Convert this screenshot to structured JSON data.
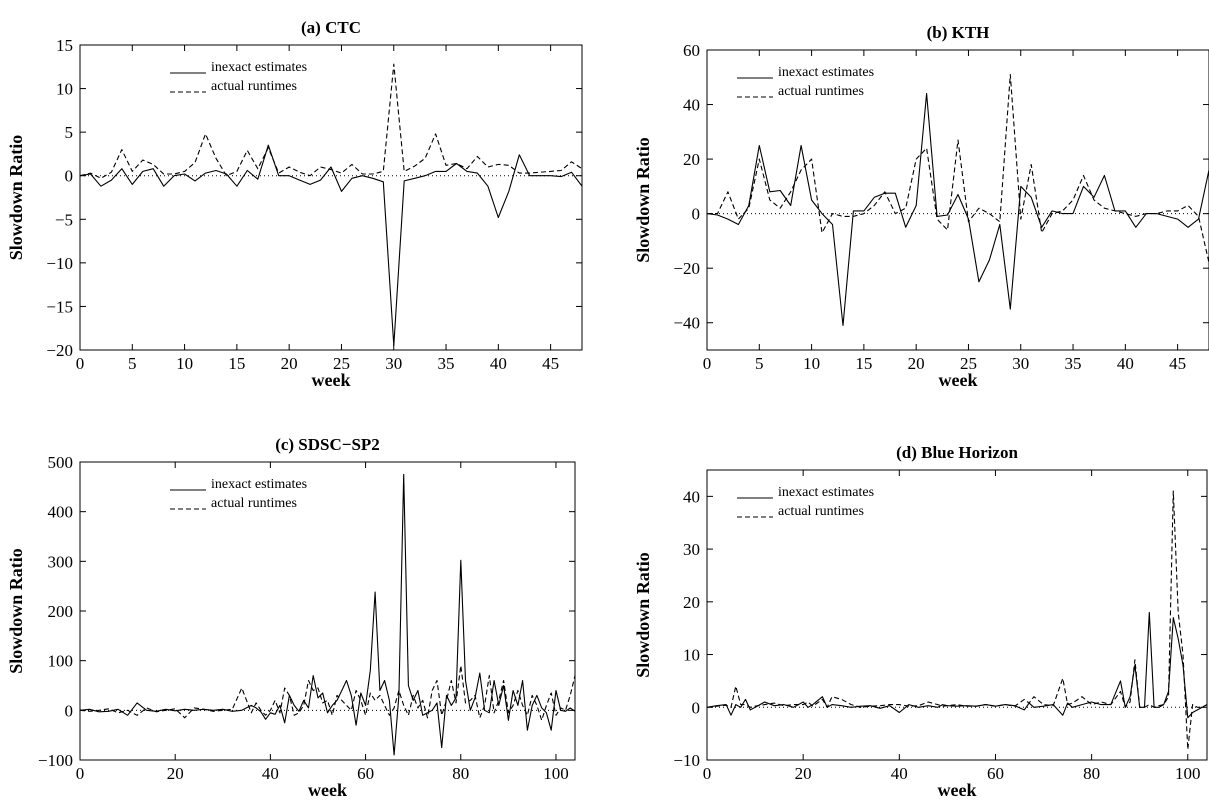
{
  "chart_data": [
    {
      "id": "ctc",
      "type": "line",
      "title": "(a) CTC",
      "xlabel": "week",
      "ylabel": "Slowdown Ratio",
      "xlim": [
        0,
        48
      ],
      "ylim": [
        -20,
        15
      ],
      "xticks": [
        0,
        5,
        10,
        15,
        20,
        25,
        30,
        35,
        40,
        45
      ],
      "yticks": [
        -20,
        -15,
        -10,
        -5,
        0,
        5,
        10,
        15
      ],
      "x": [
        0,
        1,
        2,
        3,
        4,
        5,
        6,
        7,
        8,
        9,
        10,
        11,
        12,
        13,
        14,
        15,
        16,
        17,
        18,
        19,
        20,
        21,
        22,
        23,
        24,
        25,
        26,
        27,
        28,
        29,
        30,
        31,
        32,
        33,
        34,
        35,
        36,
        37,
        38,
        39,
        40,
        41,
        42,
        43,
        44,
        45,
        46,
        47,
        48
      ],
      "series": [
        {
          "name": "inexact estimates",
          "style": "solid",
          "values": [
            0,
            0.2,
            -1.2,
            -0.5,
            0.8,
            -1,
            0.5,
            0.8,
            -1.2,
            0,
            0.2,
            -0.6,
            0.3,
            0.6,
            0.2,
            -1.2,
            0.6,
            -0.4,
            3.5,
            0,
            0,
            -0.5,
            -1,
            -0.5,
            1,
            -1.8,
            -0.3,
            0,
            -0.3,
            -0.7,
            -19.5,
            -0.6,
            -0.3,
            0,
            0.5,
            0.5,
            1.4,
            0.5,
            0.3,
            -1.2,
            -4.8,
            -1.8,
            2.4,
            0,
            0,
            0,
            -0.1,
            0.4,
            -1.2
          ]
        },
        {
          "name": "actual runtimes",
          "style": "dashed",
          "values": [
            0,
            0.3,
            -0.3,
            0.4,
            3,
            0.5,
            1.8,
            1.3,
            0.2,
            0.2,
            0.5,
            1.5,
            4.8,
            2,
            0,
            0.5,
            2.9,
            0.8,
            3.2,
            0.3,
            1,
            0.4,
            0,
            1,
            0.7,
            0.3,
            1.3,
            0.2,
            0.2,
            0.5,
            12.8,
            0.5,
            1.1,
            2,
            4.8,
            1.2,
            1.4,
            0.8,
            2.2,
            1,
            1.3,
            1.2,
            0.3,
            0.3,
            0.4,
            0.5,
            0.6,
            1.6,
            0.8
          ]
        }
      ],
      "legend": {
        "position": "top-left",
        "entries": [
          "inexact estimates",
          "actual runtimes"
        ]
      }
    },
    {
      "id": "kth",
      "type": "line",
      "title": "(b) KTH",
      "xlabel": "week",
      "ylabel": "Slowdown Ratio",
      "xlim": [
        0,
        48
      ],
      "ylim": [
        -50,
        60
      ],
      "xticks": [
        0,
        5,
        10,
        15,
        20,
        25,
        30,
        35,
        40,
        45
      ],
      "yticks": [
        -40,
        -20,
        0,
        20,
        40,
        60
      ],
      "x": [
        0,
        1,
        2,
        3,
        4,
        5,
        6,
        7,
        8,
        9,
        10,
        11,
        12,
        13,
        14,
        15,
        16,
        17,
        18,
        19,
        20,
        21,
        22,
        23,
        24,
        25,
        26,
        27,
        28,
        29,
        30,
        31,
        32,
        33,
        34,
        35,
        36,
        37,
        38,
        39,
        40,
        41,
        42,
        43,
        44,
        45,
        46,
        47,
        48
      ],
      "series": [
        {
          "name": "inexact estimates",
          "style": "solid",
          "values": [
            0,
            -0.5,
            -2,
            -4,
            3,
            25,
            8,
            8.5,
            3,
            25,
            5,
            0,
            -4,
            -41,
            1,
            1,
            6,
            7.5,
            7.5,
            -5,
            3,
            44,
            -1,
            -0.5,
            7,
            -2,
            -25,
            -17,
            -4,
            -35,
            10,
            6,
            -5,
            1,
            0,
            0,
            10,
            6,
            14,
            1,
            1,
            -5,
            0,
            0,
            -1,
            -2,
            -5,
            -2,
            16
          ]
        },
        {
          "name": "actual runtimes",
          "style": "dashed",
          "values": [
            0,
            0,
            8,
            -2,
            2,
            20,
            5,
            2,
            8,
            16,
            20,
            -7,
            0,
            -1,
            -1,
            0,
            3,
            8,
            0,
            2,
            20,
            24,
            -2,
            -6,
            27,
            -3,
            2,
            0,
            -3,
            51,
            -2,
            18,
            -7,
            0,
            1,
            5,
            14,
            5,
            2,
            1,
            0,
            -1,
            0,
            0,
            1,
            1,
            3,
            -1,
            -18
          ]
        }
      ],
      "legend": {
        "position": "top-left",
        "entries": [
          "inexact estimates",
          "actual runtimes"
        ]
      }
    },
    {
      "id": "sdsc",
      "type": "line",
      "title": "(c) SDSC−SP2",
      "xlabel": "week",
      "ylabel": "Slowdown Ratio",
      "xlim": [
        0,
        104
      ],
      "ylim": [
        -100,
        500
      ],
      "xticks": [
        0,
        20,
        40,
        60,
        80,
        100
      ],
      "yticks": [
        -100,
        0,
        100,
        200,
        300,
        400,
        500
      ],
      "x": [
        0,
        2,
        4,
        6,
        8,
        10,
        12,
        14,
        16,
        18,
        20,
        22,
        24,
        26,
        28,
        30,
        32,
        34,
        36,
        37,
        38,
        39,
        40,
        41,
        42,
        43,
        44,
        45,
        46,
        47,
        48,
        49,
        50,
        51,
        52,
        53,
        54,
        55,
        56,
        57,
        58,
        59,
        60,
        61,
        62,
        63,
        64,
        65,
        66,
        67,
        68,
        69,
        70,
        71,
        72,
        73,
        74,
        75,
        76,
        77,
        78,
        79,
        80,
        81,
        82,
        83,
        84,
        85,
        86,
        87,
        88,
        89,
        90,
        91,
        92,
        93,
        94,
        95,
        96,
        97,
        98,
        99,
        100,
        101,
        102,
        103,
        104
      ],
      "series": [
        {
          "name": "inexact estimates",
          "style": "solid",
          "values": [
            0,
            2,
            -3,
            -2,
            2,
            -10,
            15,
            0,
            -2,
            2,
            -1,
            2,
            0,
            2,
            0,
            2,
            -2,
            0,
            10,
            5,
            -3,
            -18,
            -5,
            -8,
            10,
            -25,
            30,
            10,
            -2,
            20,
            5,
            70,
            25,
            35,
            -5,
            10,
            20,
            40,
            60,
            30,
            -30,
            35,
            10,
            80,
            238,
            40,
            60,
            20,
            -90,
            30,
            475,
            50,
            20,
            40,
            -10,
            -5,
            0,
            15,
            -75,
            30,
            10,
            25,
            302,
            60,
            0,
            25,
            75,
            0,
            -5,
            60,
            10,
            50,
            -20,
            40,
            10,
            60,
            -40,
            10,
            30,
            5,
            -5,
            -40,
            40,
            0,
            -2,
            5,
            -2
          ]
        },
        {
          "name": "actual runtimes",
          "style": "dashed",
          "values": [
            0,
            -2,
            0,
            3,
            -5,
            0,
            -10,
            5,
            -3,
            0,
            3,
            -15,
            5,
            2,
            -2,
            0,
            2,
            45,
            -5,
            15,
            0,
            -10,
            0,
            20,
            -5,
            45,
            30,
            -10,
            -5,
            10,
            60,
            40,
            45,
            15,
            20,
            -10,
            30,
            20,
            10,
            0,
            40,
            20,
            -10,
            35,
            20,
            30,
            10,
            -10,
            5,
            40,
            10,
            -10,
            30,
            5,
            20,
            -15,
            40,
            60,
            -10,
            20,
            60,
            15,
            90,
            15,
            20,
            30,
            -15,
            10,
            70,
            -5,
            20,
            60,
            -5,
            10,
            40,
            10,
            -10,
            30,
            10,
            -20,
            10,
            35,
            -10,
            5,
            0,
            30,
            70
          ]
        }
      ],
      "legend": {
        "position": "top-left",
        "entries": [
          "inexact estimates",
          "actual runtimes"
        ]
      }
    },
    {
      "id": "blue",
      "type": "line",
      "title": "(d) Blue Horizon",
      "xlabel": "week",
      "ylabel": "Slowdown Ratio",
      "xlim": [
        0,
        104
      ],
      "ylim": [
        -10,
        45
      ],
      "xticks": [
        0,
        20,
        40,
        60,
        80,
        100
      ],
      "yticks": [
        -10,
        0,
        10,
        20,
        30,
        40
      ],
      "x": [
        0,
        2,
        4,
        5,
        6,
        7,
        8,
        9,
        10,
        12,
        14,
        16,
        18,
        20,
        21,
        22,
        24,
        25,
        26,
        28,
        30,
        32,
        34,
        36,
        38,
        40,
        42,
        44,
        46,
        48,
        49,
        50,
        52,
        54,
        56,
        58,
        60,
        62,
        64,
        66,
        67,
        68,
        70,
        72,
        74,
        75,
        76,
        78,
        80,
        82,
        84,
        86,
        87,
        88,
        89,
        90,
        91,
        92,
        93,
        94,
        95,
        96,
        97,
        98,
        99,
        100,
        101,
        102,
        103,
        104
      ],
      "series": [
        {
          "name": "inexact estimates",
          "style": "solid",
          "values": [
            0,
            0.3,
            0.5,
            -1.5,
            0.5,
            0,
            1.5,
            -0.5,
            0,
            1,
            0.3,
            0.5,
            0,
            1,
            0,
            0.5,
            2,
            0,
            0.5,
            0.3,
            0,
            0.2,
            0.3,
            -0.2,
            0.3,
            -1,
            0.5,
            0,
            0.3,
            0,
            0.5,
            0.3,
            0.2,
            0.3,
            0.2,
            0.5,
            0.2,
            0.5,
            0.3,
            -0.5,
            0.8,
            0,
            0.2,
            0.5,
            -1.5,
            0.8,
            0,
            0.5,
            1,
            0.5,
            0.5,
            5,
            0,
            2,
            8,
            0,
            0,
            18,
            0,
            0,
            0.5,
            3,
            17,
            13,
            8,
            -2,
            -1,
            -0.5,
            0,
            0.5
          ]
        },
        {
          "name": "actual runtimes",
          "style": "dashed",
          "values": [
            0,
            0.2,
            0.4,
            0,
            4,
            0.5,
            0.5,
            0,
            0.2,
            0.5,
            0.8,
            0.3,
            0.5,
            0.5,
            1,
            0.2,
            1.5,
            0,
            2,
            1.5,
            0.5,
            0,
            0.2,
            0.3,
            0.5,
            0.5,
            0.2,
            0.3,
            1,
            0.5,
            0.2,
            0.3,
            0.5,
            0.2,
            0.2,
            0.5,
            0.2,
            0.5,
            0.2,
            1.5,
            0.8,
            2,
            0.5,
            0.3,
            5.5,
            0.5,
            0.8,
            2,
            0.5,
            1,
            0.5,
            3,
            0,
            1,
            9,
            0,
            0,
            0.5,
            0,
            0.3,
            0.5,
            2,
            41,
            18,
            10,
            -8,
            0.5,
            0,
            0,
            0.5
          ]
        }
      ],
      "legend": {
        "position": "top-left",
        "entries": [
          "inexact estimates",
          "actual runtimes"
        ]
      }
    }
  ]
}
